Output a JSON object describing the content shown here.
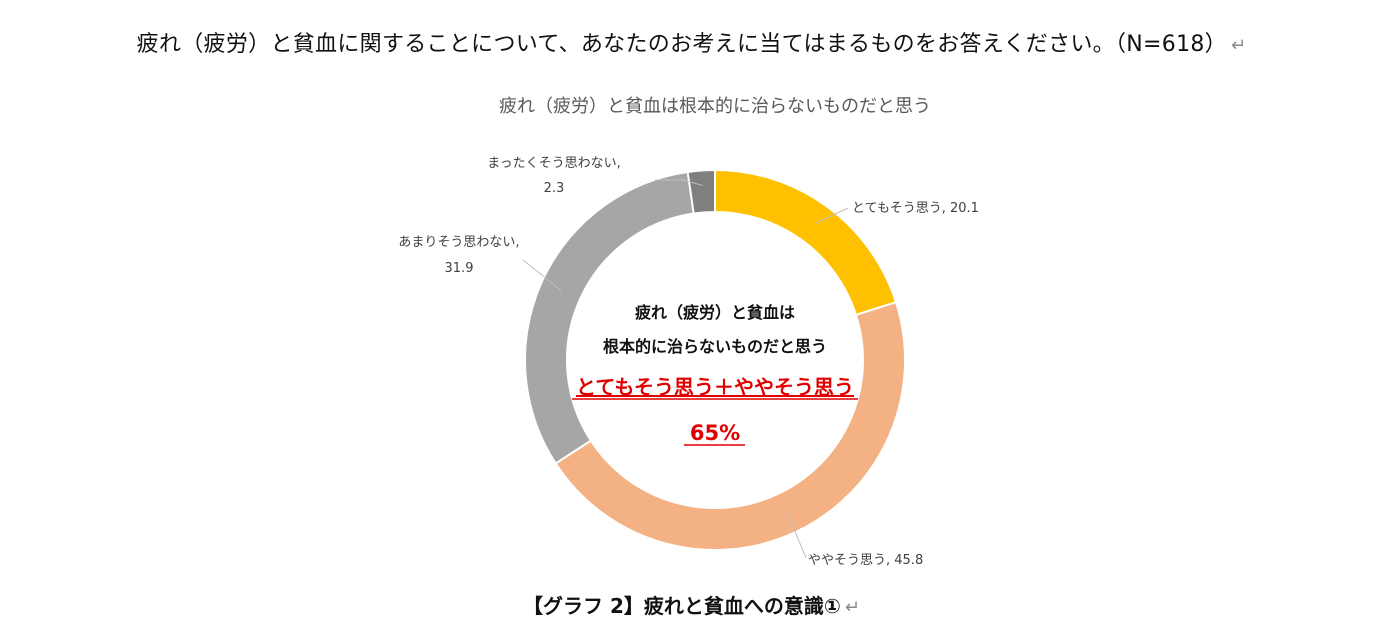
{
  "question": {
    "text": "疲れ（疲労）と貧血に関することについて、あなたのお考えに当てはまるものをお答えください。（N=618）",
    "return_mark": "↵"
  },
  "chart_data": {
    "type": "pie",
    "title": "疲れ（疲労）と貧血は根本的に治らないものだと思う",
    "donut": true,
    "start_angle_deg": 0,
    "direction": "clockwise",
    "slices": [
      {
        "label": "とてもそう思う",
        "value": 20.1,
        "color": "#FFC000",
        "data_label": "とてもそう思う, 20.1"
      },
      {
        "label": "ややそう思う",
        "value": 45.8,
        "color": "#F4B183",
        "data_label": "ややそう思う, 45.8"
      },
      {
        "label": "あまりそう思わない",
        "value": 31.9,
        "color": "#A6A6A6",
        "data_label_lines": [
          "あまりそう思わない,",
          "31.9"
        ]
      },
      {
        "label": "まったくそう思わない",
        "value": 2.3,
        "color": "#7F7F7F",
        "data_label_lines": [
          "まったくそう思わない,",
          "2.3"
        ]
      }
    ],
    "center_text": {
      "line1": "疲れ（疲労）と貧血は",
      "line2": "根本的に治らないものだと思う",
      "highlight": "とてもそう思う＋ややそう思う",
      "percent": "65%",
      "highlight_color": "#E00000"
    }
  },
  "caption": {
    "text": "【グラフ 2】疲れと貧血への意識①",
    "return_mark": "↵"
  }
}
